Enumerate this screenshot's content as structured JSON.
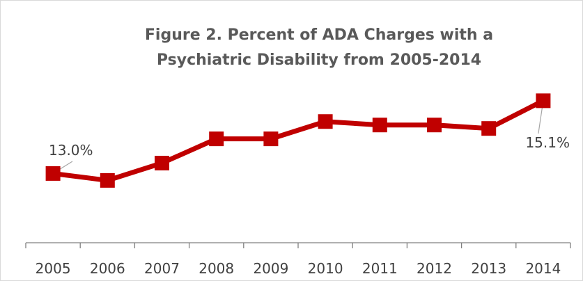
{
  "chart_data": {
    "type": "line",
    "title_lines": [
      "Figure 2. Percent of ADA Charges with a",
      "Psychiatric Disability from 2005-2014"
    ],
    "xlabel": "",
    "ylabel": "",
    "categories": [
      "2005",
      "2006",
      "2007",
      "2008",
      "2009",
      "2010",
      "2011",
      "2012",
      "2013",
      "2014"
    ],
    "series": [
      {
        "values": [
          13.0,
          12.8,
          13.3,
          14.0,
          14.0,
          14.5,
          14.4,
          14.4,
          14.3,
          15.1
        ],
        "color": "#C00000"
      }
    ],
    "data_labels": [
      {
        "index": 0,
        "text": "13.0%"
      },
      {
        "index": 9,
        "text": "15.1%"
      }
    ],
    "ylim": [
      11.0,
      15.8
    ],
    "y_axis_visible": false,
    "grid": false,
    "legend": "none",
    "axis_color": "#808080",
    "border_color": "#D9D9D9",
    "leader_line_color": "#A6A6A6"
  }
}
